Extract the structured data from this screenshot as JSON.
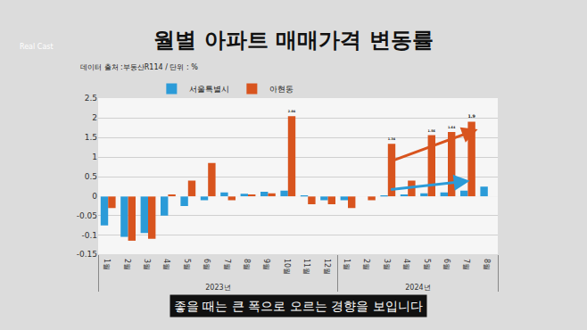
{
  "chart_data": {
    "type": "bar",
    "title": "월별 아파트 매매가격 변동률",
    "subtitle": "데이터 출처 :부동산R114 / 단위 : %",
    "annotations": [
      {
        "text": "좋을 때는 큰 폭으로 오르는 경향을 보입니다"
      },
      {
        "text": "Real Cast"
      }
    ],
    "categories": [
      "1월",
      "2월",
      "3월",
      "4월",
      "5월",
      "6월",
      "7월",
      "8월",
      "9월",
      "10월",
      "11월",
      "12월",
      "1월",
      "2월",
      "3월",
      "4월",
      "5월",
      "6월",
      "7월",
      "8월"
    ],
    "category_groups": [
      "2023년",
      "2023년",
      "2023년",
      "2023년",
      "2023년",
      "2023년",
      "2023년",
      "2023년",
      "2023년",
      "2023년",
      "2023년",
      "2023년",
      "2024년",
      "2024년",
      "2024년",
      "2024년",
      "2024년",
      "2024년",
      "2024년",
      "2024년"
    ],
    "series": [
      {
        "name": "서울특별시",
        "color": "#2b9bd8",
        "values": [
          -0.075,
          -0.105,
          -0.095,
          -0.05,
          -0.025,
          -0.01,
          0.1,
          0.07,
          0.12,
          0.15,
          0.02,
          -0.01,
          -0.01,
          0,
          0.02,
          0.05,
          0.08,
          0.1,
          0.15,
          0.25
        ]
      },
      {
        "name": "아현동",
        "color": "#d8541e",
        "values": [
          -0.03,
          -0.115,
          -0.11,
          0.05,
          0.4,
          0.85,
          -0.01,
          0.05,
          0.08,
          2.04,
          -0.02,
          -0.02,
          -0.03,
          -0.01,
          1.34,
          0.4,
          1.56,
          1.64,
          1.9,
          null
        ],
        "value_labels": [
          null,
          null,
          null,
          null,
          null,
          null,
          null,
          null,
          null,
          "2.04",
          null,
          null,
          null,
          null,
          "1.34",
          null,
          "1.56",
          "1.64",
          "1.9",
          null
        ]
      }
    ],
    "ylim": [
      -0.15,
      2.5
    ],
    "yticks": [
      -0.15,
      -0.1,
      -0.05,
      0,
      0.5,
      1,
      1.5,
      2,
      2.5
    ],
    "grid": true,
    "legend": "top"
  }
}
